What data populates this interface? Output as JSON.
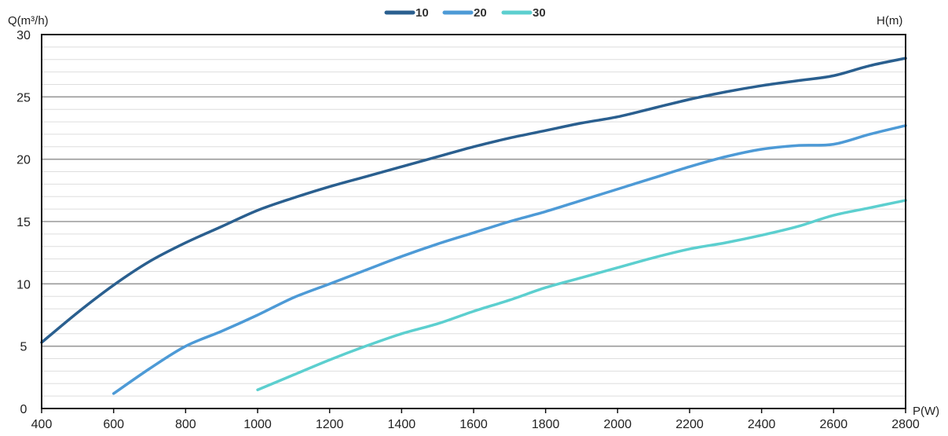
{
  "chart_data": {
    "type": "line",
    "ylabel": "Q(m³/h)",
    "y2label": "H(m)",
    "xlabel": "P(W)",
    "xlim": [
      400,
      2800
    ],
    "ylim": [
      0,
      30
    ],
    "xticks": [
      "400",
      "600",
      "800",
      "1000",
      "1200",
      "1400",
      "1600",
      "1800",
      "2000",
      "2200",
      "2400",
      "2600",
      "2800"
    ],
    "yticks": [
      "0",
      "5",
      "10",
      "15",
      "20",
      "25",
      "30"
    ],
    "grid": true,
    "legend_position": "top-center",
    "series": [
      {
        "name": "10",
        "color": "#2a5f8f",
        "x": [
          400,
          500,
          600,
          700,
          800,
          900,
          1000,
          1100,
          1200,
          1300,
          1400,
          1500,
          1600,
          1700,
          1800,
          1900,
          2000,
          2100,
          2200,
          2300,
          2400,
          2500,
          2600,
          2700,
          2800
        ],
        "y": [
          5.3,
          7.7,
          9.9,
          11.8,
          13.3,
          14.6,
          15.9,
          16.9,
          17.8,
          18.6,
          19.4,
          20.2,
          21.0,
          21.7,
          22.3,
          22.9,
          23.4,
          24.1,
          24.8,
          25.4,
          25.9,
          26.3,
          26.7,
          27.5,
          28.1
        ]
      },
      {
        "name": "20",
        "color": "#4d9ad6",
        "x": [
          600,
          700,
          800,
          900,
          1000,
          1100,
          1200,
          1300,
          1400,
          1500,
          1600,
          1700,
          1800,
          1900,
          2000,
          2100,
          2200,
          2300,
          2400,
          2500,
          2600,
          2700,
          2800
        ],
        "y": [
          1.2,
          3.2,
          5.0,
          6.2,
          7.5,
          8.9,
          10.0,
          11.1,
          12.2,
          13.2,
          14.1,
          15.0,
          15.8,
          16.7,
          17.6,
          18.5,
          19.4,
          20.2,
          20.8,
          21.1,
          21.2,
          22.0,
          22.7
        ]
      },
      {
        "name": "30",
        "color": "#5ccfcf",
        "x": [
          1000,
          1100,
          1200,
          1300,
          1400,
          1500,
          1600,
          1700,
          1800,
          1900,
          2000,
          2100,
          2200,
          2300,
          2400,
          2500,
          2600,
          2700,
          2800
        ],
        "y": [
          1.5,
          2.7,
          3.9,
          5.0,
          6.0,
          6.8,
          7.8,
          8.7,
          9.7,
          10.5,
          11.3,
          12.1,
          12.8,
          13.3,
          13.9,
          14.6,
          15.5,
          16.1,
          16.7
        ]
      }
    ]
  }
}
